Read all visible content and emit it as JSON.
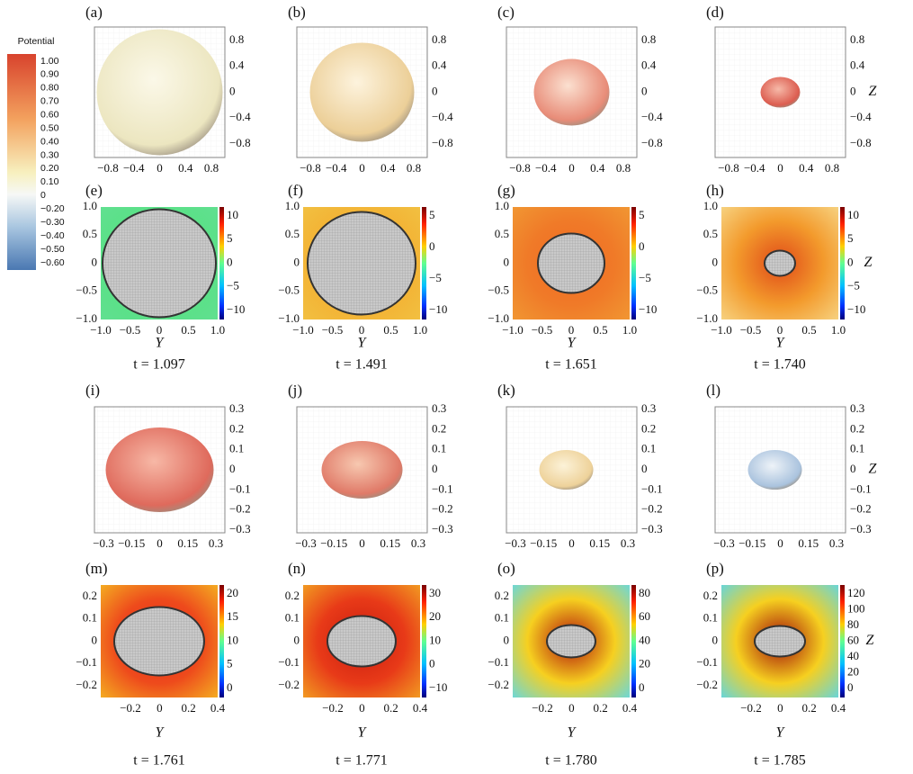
{
  "colorbar": {
    "title": "Potential",
    "labels": [
      "1.00",
      "0.90",
      "0.80",
      "0.70",
      "0.60",
      "0.50",
      "0.40",
      "0.30",
      "0.20",
      "0.10",
      "0",
      "−0.20",
      "−0.30",
      "−0.40",
      "−0.50",
      "−0.60"
    ]
  },
  "panels": [
    {
      "label": "(a)",
      "y_ticks": [
        "0.8",
        "0.4",
        "0",
        "−0.4",
        "−0.8"
      ],
      "x_ticks": [
        "−0.8",
        "−0.4",
        "0",
        "0.4",
        "0.8"
      ]
    },
    {
      "label": "(b)",
      "y_ticks": [
        "0.8",
        "0.4",
        "0",
        "−0.4",
        "−0.8"
      ],
      "x_ticks": [
        "−0.8",
        "−0.4",
        "0",
        "0.4",
        "0.8"
      ]
    },
    {
      "label": "(c)",
      "y_ticks": [
        "0.8",
        "0.4",
        "0",
        "−0.4",
        "−0.8"
      ],
      "x_ticks": [
        "−0.8",
        "−0.4",
        "0",
        "0.4",
        "0.8"
      ]
    },
    {
      "label": "(d)",
      "y_ticks": [
        "0.8",
        "0.4",
        "0",
        "−0.4",
        "−0.8"
      ],
      "x_ticks": [
        "−0.8",
        "−0.4",
        "0",
        "0.4",
        "0.8"
      ],
      "z_label": "Z"
    },
    {
      "label": "(e)",
      "y_ticks": [
        "1.0",
        "0.5",
        "0",
        "−0.5",
        "−1.0"
      ],
      "x_ticks": [
        "−1.0",
        "−0.5",
        "0",
        "0.5",
        "1.0"
      ],
      "colorbar_ticks": [
        "10",
        "5",
        "0",
        "−5",
        "−10"
      ],
      "x_axis_label": "Y",
      "time": "t = 1.097"
    },
    {
      "label": "(f)",
      "y_ticks": [
        "1.0",
        "0.5",
        "0",
        "−0.5",
        "−1.0"
      ],
      "x_ticks": [
        "−1.0",
        "−0.5",
        "0",
        "0.5",
        "1.0"
      ],
      "colorbar_ticks": [
        "5",
        "0",
        "−5",
        "−10"
      ],
      "x_axis_label": "Y",
      "time": "t = 1.491"
    },
    {
      "label": "(g)",
      "y_ticks": [
        "1.0",
        "0.5",
        "0",
        "−0.5",
        "−1.0"
      ],
      "x_ticks": [
        "−1.0",
        "−0.5",
        "0",
        "0.5",
        "1.0"
      ],
      "colorbar_ticks": [
        "5",
        "0",
        "−5",
        "−10"
      ],
      "x_axis_label": "Y",
      "time": "t = 1.651"
    },
    {
      "label": "(h)",
      "y_ticks": [
        "1.0",
        "0.5",
        "0",
        "−0.5",
        "−1.0"
      ],
      "x_ticks": [
        "−1.0",
        "−0.5",
        "0",
        "0.5",
        "1.0"
      ],
      "colorbar_ticks": [
        "10",
        "5",
        "0",
        "−5",
        "−10"
      ],
      "x_axis_label": "Y",
      "time": "t = 1.740",
      "z_label": "Z"
    },
    {
      "label": "(i)",
      "y_ticks": [
        "0.3",
        "0.2",
        "0.1",
        "0",
        "−0.1",
        "−0.2",
        "−0.3"
      ],
      "x_ticks": [
        "−0.3",
        "−0.15",
        "0",
        "0.15",
        "0.3"
      ]
    },
    {
      "label": "(j)",
      "y_ticks": [
        "0.3",
        "0.2",
        "0.1",
        "0",
        "−0.1",
        "−0.2",
        "−0.3"
      ],
      "x_ticks": [
        "−0.3",
        "−0.15",
        "0",
        "0.15",
        "0.3"
      ]
    },
    {
      "label": "(k)",
      "y_ticks": [
        "0.3",
        "0.2",
        "0.1",
        "0",
        "−0.1",
        "−0.2",
        "−0.3"
      ],
      "x_ticks": [
        "−0.3",
        "−0.15",
        "0",
        "0.15",
        "0.3"
      ]
    },
    {
      "label": "(l)",
      "y_ticks": [
        "0.3",
        "0.2",
        "0.1",
        "0",
        "−0.1",
        "−0.2",
        "−0.3"
      ],
      "x_ticks": [
        "−0.3",
        "−0.15",
        "0",
        "0.15",
        "0.3"
      ],
      "z_label": "Z"
    },
    {
      "label": "(m)",
      "y_ticks": [
        "0.2",
        "0.1",
        "0",
        "−0.1",
        "−0.2"
      ],
      "x_ticks": [
        "−0.2",
        "0",
        "0.2",
        "0.4"
      ],
      "colorbar_ticks": [
        "20",
        "15",
        "10",
        "5",
        "0"
      ],
      "x_axis_label": "Y",
      "time": "t = 1.761"
    },
    {
      "label": "(n)",
      "y_ticks": [
        "0.2",
        "0.1",
        "0",
        "−0.1",
        "−0.2"
      ],
      "x_ticks": [
        "−0.2",
        "0",
        "0.2",
        "0.4"
      ],
      "colorbar_ticks": [
        "30",
        "20",
        "10",
        "0",
        "−10"
      ],
      "x_axis_label": "Y",
      "time": "t = 1.771"
    },
    {
      "label": "(o)",
      "y_ticks": [
        "0.2",
        "0.1",
        "0",
        "−0.1",
        "−0.2"
      ],
      "x_ticks": [
        "−0.2",
        "0",
        "0.2",
        "0.4"
      ],
      "colorbar_ticks": [
        "80",
        "60",
        "40",
        "20",
        "0"
      ],
      "x_axis_label": "Y",
      "time": "t = 1.780"
    },
    {
      "label": "(p)",
      "y_ticks": [
        "0.2",
        "0.1",
        "0",
        "−0.1",
        "−0.2"
      ],
      "x_ticks": [
        "−0.2",
        "0",
        "0.2",
        "0.4"
      ],
      "colorbar_ticks": [
        "120",
        "100",
        "80",
        "60",
        "40",
        "20",
        "0"
      ],
      "x_axis_label": "Y",
      "time": "t = 1.785",
      "z_label": "Z"
    }
  ]
}
